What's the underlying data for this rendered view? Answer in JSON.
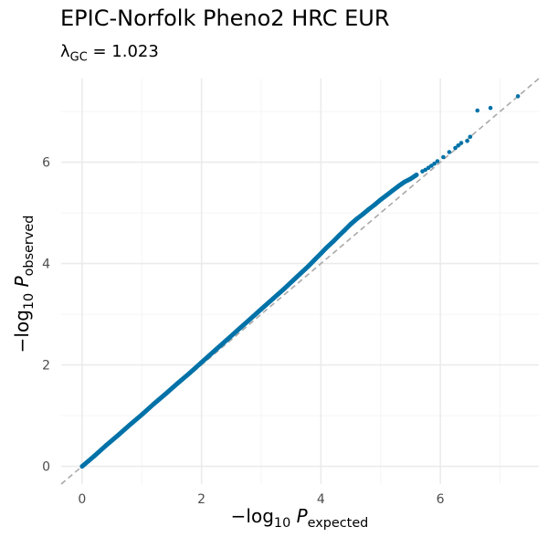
{
  "title": "EPIC-Norfolk Pheno2 HRC EUR",
  "subtitle": {
    "lambda_symbol": "λ",
    "lambda_subscript": "GC",
    "equals": " = ",
    "value": "1.023"
  },
  "axes": {
    "x_title": {
      "prefix": "−log",
      "base": "10",
      "variable": "P",
      "subscript": "expected"
    },
    "y_title": {
      "prefix": "−log",
      "base": "10",
      "variable": "P",
      "subscript": "observed"
    }
  },
  "colors": {
    "points": "#0072a8",
    "reference_line": "#a9a9a9",
    "grid_major": "#ebebeb",
    "grid_minor": "#f5f5f5",
    "tick_text": "#4d4d4d"
  },
  "chart_data": {
    "type": "scatter",
    "title": "EPIC-Norfolk Pheno2 HRC EUR",
    "subtitle": "λGC = 1.023",
    "xlabel": "−log10 P expected",
    "ylabel": "−log10 P observed",
    "xlim": [
      -0.35,
      7.65
    ],
    "ylim": [
      -0.35,
      7.65
    ],
    "x_ticks": [
      0,
      2,
      4,
      6
    ],
    "y_ticks": [
      0,
      2,
      4,
      6
    ],
    "x_tick_labels": [
      "0",
      "2",
      "4",
      "6"
    ],
    "y_tick_labels": [
      "0",
      "2",
      "4",
      "6"
    ],
    "grid": true,
    "legend": "none",
    "reference_line": "y = x (dashed)",
    "x": [
      0.0,
      0.2,
      0.4,
      0.6,
      0.8,
      1.0,
      1.2,
      1.4,
      1.6,
      1.8,
      2.0,
      2.2,
      2.4,
      2.6,
      2.8,
      3.0,
      3.2,
      3.4,
      3.6,
      3.8,
      3.9,
      4.0,
      4.1,
      4.2,
      4.3,
      4.4,
      4.5,
      4.6,
      4.7,
      4.8,
      4.9,
      5.0,
      5.1,
      5.2,
      5.3,
      5.4,
      5.5,
      5.6,
      5.7,
      5.75,
      5.8,
      5.85,
      5.9,
      5.95,
      6.05,
      6.15,
      6.25,
      6.3,
      6.35,
      6.45,
      6.5,
      6.62,
      6.84,
      7.3
    ],
    "y": [
      0.0,
      0.2,
      0.41,
      0.61,
      0.82,
      1.02,
      1.23,
      1.43,
      1.64,
      1.84,
      2.05,
      2.26,
      2.47,
      2.68,
      2.89,
      3.1,
      3.31,
      3.52,
      3.74,
      3.96,
      4.08,
      4.2,
      4.32,
      4.43,
      4.55,
      4.66,
      4.78,
      4.88,
      4.97,
      5.07,
      5.16,
      5.26,
      5.35,
      5.44,
      5.53,
      5.61,
      5.67,
      5.75,
      5.82,
      5.85,
      5.89,
      5.93,
      5.97,
      6.02,
      6.1,
      6.2,
      6.28,
      6.33,
      6.38,
      6.42,
      6.5,
      7.02,
      7.07,
      7.3
    ]
  }
}
